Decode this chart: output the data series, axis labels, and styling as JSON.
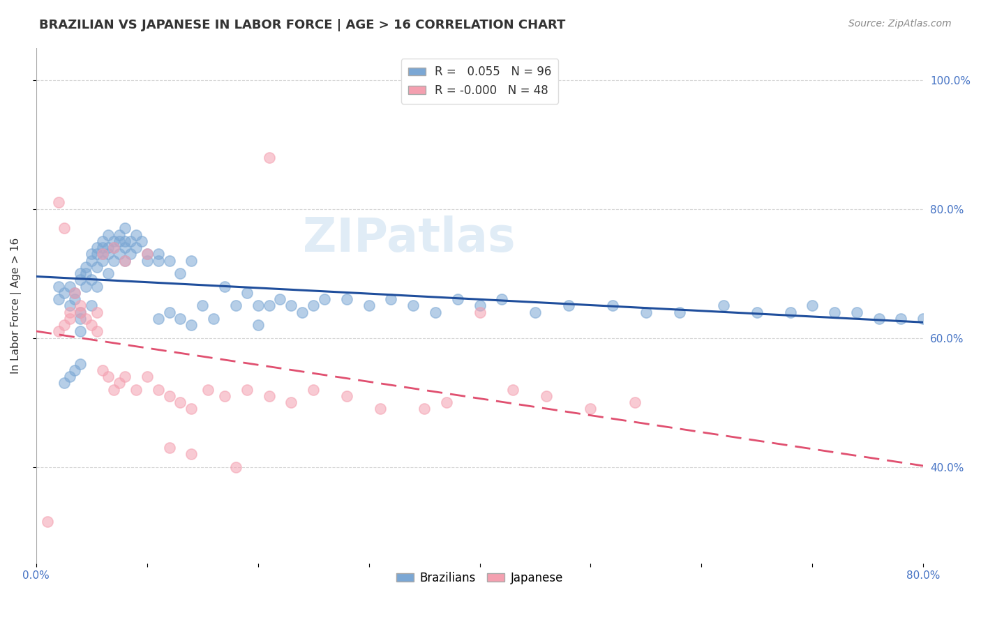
{
  "title": "BRAZILIAN VS JAPANESE IN LABOR FORCE | AGE > 16 CORRELATION CHART",
  "source": "Source: ZipAtlas.com",
  "xlabel": "",
  "ylabel": "In Labor Force | Age > 16",
  "watermark": "ZIPatlas",
  "blue_R": 0.055,
  "blue_N": 96,
  "pink_R": -0.0,
  "pink_N": 48,
  "xlim": [
    0.0,
    0.8
  ],
  "ylim": [
    0.25,
    1.05
  ],
  "x_ticks": [
    0.0,
    0.1,
    0.2,
    0.3,
    0.4,
    0.5,
    0.6,
    0.7,
    0.8
  ],
  "x_tick_labels": [
    "0.0%",
    "",
    "",
    "",
    "",
    "",
    "",
    "",
    "80.0%"
  ],
  "y_ticks": [
    0.4,
    0.6,
    0.8,
    1.0
  ],
  "y_tick_labels": [
    "40.0%",
    "60.0%",
    "80.0%",
    "100.0%"
  ],
  "blue_color": "#7ba7d4",
  "pink_color": "#f4a0b0",
  "blue_line_color": "#1f4e9c",
  "pink_line_color": "#e05070",
  "grid_color": "#cccccc",
  "background_color": "#ffffff",
  "blue_x": [
    0.02,
    0.02,
    0.025,
    0.03,
    0.03,
    0.035,
    0.035,
    0.04,
    0.04,
    0.04,
    0.04,
    0.04,
    0.045,
    0.045,
    0.045,
    0.05,
    0.05,
    0.05,
    0.05,
    0.055,
    0.055,
    0.055,
    0.055,
    0.06,
    0.06,
    0.06,
    0.06,
    0.065,
    0.065,
    0.065,
    0.065,
    0.07,
    0.07,
    0.07,
    0.075,
    0.075,
    0.075,
    0.08,
    0.08,
    0.08,
    0.08,
    0.085,
    0.085,
    0.09,
    0.09,
    0.095,
    0.1,
    0.1,
    0.11,
    0.11,
    0.11,
    0.12,
    0.12,
    0.13,
    0.13,
    0.14,
    0.14,
    0.15,
    0.16,
    0.17,
    0.18,
    0.19,
    0.2,
    0.2,
    0.21,
    0.22,
    0.23,
    0.24,
    0.25,
    0.26,
    0.28,
    0.3,
    0.32,
    0.34,
    0.36,
    0.38,
    0.4,
    0.42,
    0.45,
    0.48,
    0.52,
    0.55,
    0.58,
    0.62,
    0.65,
    0.68,
    0.7,
    0.72,
    0.74,
    0.76,
    0.78,
    0.8,
    0.025,
    0.03,
    0.035,
    0.04
  ],
  "blue_y": [
    0.66,
    0.68,
    0.67,
    0.68,
    0.65,
    0.66,
    0.67,
    0.69,
    0.7,
    0.64,
    0.63,
    0.61,
    0.68,
    0.7,
    0.71,
    0.69,
    0.72,
    0.73,
    0.65,
    0.71,
    0.73,
    0.74,
    0.68,
    0.74,
    0.75,
    0.72,
    0.73,
    0.74,
    0.76,
    0.73,
    0.7,
    0.75,
    0.74,
    0.72,
    0.76,
    0.75,
    0.73,
    0.74,
    0.77,
    0.75,
    0.72,
    0.75,
    0.73,
    0.76,
    0.74,
    0.75,
    0.72,
    0.73,
    0.72,
    0.73,
    0.63,
    0.72,
    0.64,
    0.7,
    0.63,
    0.72,
    0.62,
    0.65,
    0.63,
    0.68,
    0.65,
    0.67,
    0.65,
    0.62,
    0.65,
    0.66,
    0.65,
    0.64,
    0.65,
    0.66,
    0.66,
    0.65,
    0.66,
    0.65,
    0.64,
    0.66,
    0.65,
    0.66,
    0.64,
    0.65,
    0.65,
    0.64,
    0.64,
    0.65,
    0.64,
    0.64,
    0.65,
    0.64,
    0.64,
    0.63,
    0.63,
    0.63,
    0.53,
    0.54,
    0.55,
    0.56
  ],
  "pink_x": [
    0.01,
    0.02,
    0.025,
    0.03,
    0.03,
    0.035,
    0.04,
    0.04,
    0.045,
    0.05,
    0.055,
    0.055,
    0.06,
    0.065,
    0.07,
    0.075,
    0.08,
    0.09,
    0.1,
    0.11,
    0.12,
    0.13,
    0.14,
    0.155,
    0.17,
    0.19,
    0.21,
    0.23,
    0.25,
    0.28,
    0.31,
    0.35,
    0.37,
    0.4,
    0.43,
    0.46,
    0.5,
    0.54,
    0.02,
    0.025,
    0.06,
    0.07,
    0.08,
    0.1,
    0.12,
    0.14,
    0.18,
    0.21
  ],
  "pink_y": [
    0.315,
    0.61,
    0.62,
    0.64,
    0.63,
    0.67,
    0.65,
    0.64,
    0.63,
    0.62,
    0.61,
    0.64,
    0.55,
    0.54,
    0.52,
    0.53,
    0.54,
    0.52,
    0.54,
    0.52,
    0.51,
    0.5,
    0.49,
    0.52,
    0.51,
    0.52,
    0.51,
    0.5,
    0.52,
    0.51,
    0.49,
    0.49,
    0.5,
    0.64,
    0.52,
    0.51,
    0.49,
    0.5,
    0.81,
    0.77,
    0.73,
    0.74,
    0.72,
    0.73,
    0.43,
    0.42,
    0.4,
    0.88
  ]
}
